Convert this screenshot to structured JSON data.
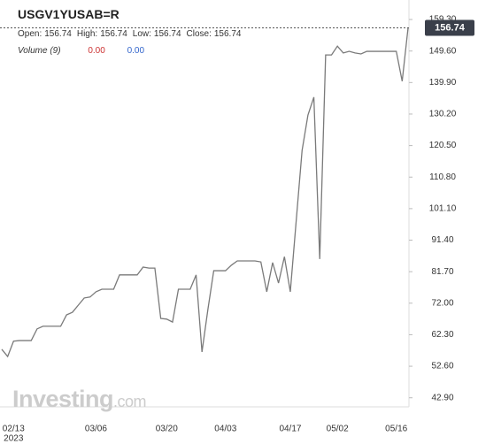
{
  "header": {
    "symbol": "USGV1YUSAB=R",
    "ohlc": [
      {
        "label": "Open:",
        "value": "156.74"
      },
      {
        "label": "High:",
        "value": "156.74"
      },
      {
        "label": "Low:",
        "value": "156.74"
      },
      {
        "label": "Close:",
        "value": "156.74"
      }
    ],
    "volume_label": "Volume (9)",
    "volume_values": [
      "0.00",
      "0.00"
    ]
  },
  "watermark": {
    "brand": "Investing",
    "suffix": ".com"
  },
  "chart_data": {
    "type": "line",
    "categories": [
      null,
      null,
      "02/13",
      null,
      null,
      null,
      null,
      null,
      null,
      null,
      null,
      null,
      null,
      null,
      null,
      null,
      "03/06",
      null,
      null,
      null,
      null,
      null,
      null,
      null,
      null,
      null,
      null,
      null,
      "03/20",
      null,
      null,
      null,
      null,
      null,
      null,
      null,
      null,
      null,
      "04/03",
      null,
      null,
      null,
      null,
      null,
      null,
      null,
      null,
      null,
      null,
      "04/17",
      null,
      null,
      null,
      null,
      null,
      null,
      null,
      "05/02",
      null,
      null,
      null,
      null,
      null,
      null,
      null,
      null,
      null,
      "05/16",
      null,
      null
    ],
    "year_label": "2023",
    "series": [
      {
        "name": "USGV1YUSAB=R",
        "color": "#7a7a7a",
        "values": [
          57.8,
          55.6,
          60.3,
          60.5,
          60.5,
          60.5,
          64.1,
          64.9,
          64.9,
          64.9,
          64.9,
          68.4,
          69.2,
          71.4,
          73.6,
          73.9,
          75.5,
          76.3,
          76.3,
          76.3,
          80.7,
          80.7,
          80.7,
          80.7,
          83.1,
          82.8,
          82.8,
          67.3,
          67.1,
          66.2,
          76.3,
          76.3,
          76.3,
          80.7,
          57.0,
          70.0,
          82.0,
          82.0,
          82.0,
          83.7,
          85.0,
          85.0,
          85.0,
          85.0,
          84.7,
          75.5,
          84.5,
          78.2,
          86.3,
          75.5,
          97.3,
          119.0,
          129.9,
          135.4,
          85.6,
          148.4,
          148.4,
          151.1,
          149.0,
          149.5,
          149.0,
          148.7,
          149.5,
          149.5,
          149.5,
          149.5,
          149.5,
          149.5,
          140.3,
          156.74
        ]
      }
    ],
    "ylim": [
      40.1,
      165.3
    ],
    "yticks": [
      {
        "value": 42.9,
        "label": "42.90"
      },
      {
        "value": 52.6,
        "label": "52.60"
      },
      {
        "value": 62.3,
        "label": "62.30"
      },
      {
        "value": 72,
        "label": "72.00"
      },
      {
        "value": 81.7,
        "label": "81.70"
      },
      {
        "value": 91.4,
        "label": "91.40"
      },
      {
        "value": 101.1,
        "label": "101.10"
      },
      {
        "value": 110.8,
        "label": "110.80"
      },
      {
        "value": 120.5,
        "label": "120.50"
      },
      {
        "value": 130.2,
        "label": "130.20"
      },
      {
        "value": 139.9,
        "label": "139.90"
      },
      {
        "value": 149.6,
        "label": "149.60"
      },
      {
        "value": 159.3,
        "label": "159.30"
      }
    ],
    "last_price": {
      "value": 156.74,
      "label": "156.74"
    }
  }
}
